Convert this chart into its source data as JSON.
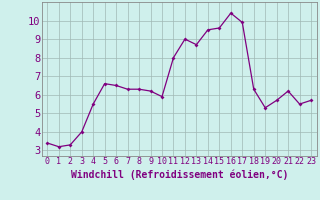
{
  "x": [
    0,
    1,
    2,
    3,
    4,
    5,
    6,
    7,
    8,
    9,
    10,
    11,
    12,
    13,
    14,
    15,
    16,
    17,
    18,
    19,
    20,
    21,
    22,
    23
  ],
  "y": [
    3.4,
    3.2,
    3.3,
    4.0,
    5.5,
    6.6,
    6.5,
    6.3,
    6.3,
    6.2,
    5.9,
    8.0,
    9.0,
    8.7,
    9.5,
    9.6,
    10.4,
    9.9,
    6.3,
    5.3,
    5.7,
    6.2,
    5.5,
    5.7
  ],
  "line_color": "#800080",
  "marker": "D",
  "marker_size": 2.0,
  "bg_color": "#cff0ec",
  "grid_color": "#a0b8b5",
  "xlabel": "Windchill (Refroidissement éolien,°C)",
  "xlabel_color": "#800080",
  "ylabel_vals": [
    3,
    4,
    5,
    6,
    7,
    8,
    9,
    10
  ],
  "xlim": [
    -0.5,
    23.5
  ],
  "ylim": [
    2.7,
    11.0
  ],
  "xtick_labels": [
    "0",
    "1",
    "2",
    "3",
    "4",
    "5",
    "6",
    "7",
    "8",
    "9",
    "10",
    "11",
    "12",
    "13",
    "14",
    "15",
    "16",
    "17",
    "18",
    "19",
    "20",
    "21",
    "22",
    "23"
  ],
  "tick_color": "#800080",
  "label_fontsize": 7.0,
  "tick_fontsize": 6.0,
  "ytick_fontsize": 7.5
}
